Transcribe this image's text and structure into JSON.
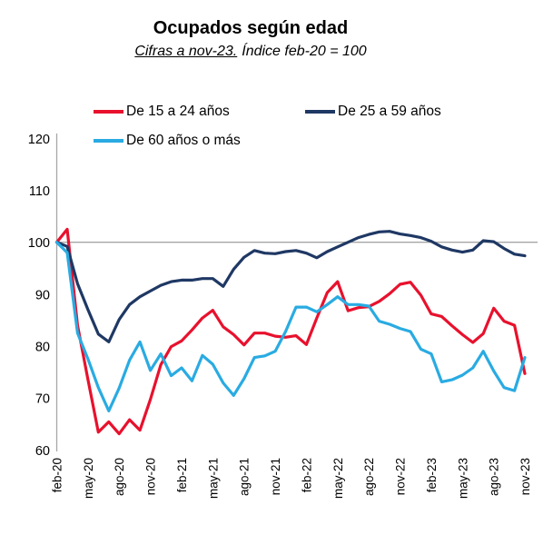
{
  "header": {
    "title": "Ocupados según edad",
    "subtitle_underlined": "Cifras a nov-23.",
    "subtitle_rest": "Índice feb-20 = 100"
  },
  "colors": {
    "axis": "#a6a6a6",
    "grid": "#a6a6a6",
    "text": "#000000"
  },
  "chart_data": {
    "type": "line",
    "title": "Ocupados según edad",
    "subtitle": "Cifras a nov-23. Índice feb-20 = 100",
    "ylabel": "",
    "xlabel": "",
    "ylim": [
      60,
      120
    ],
    "yticks": [
      120,
      110,
      100,
      90,
      80,
      70,
      60
    ],
    "ref_line": 100,
    "grid": "horizontal-reference-line-at-100-only",
    "legend_position": "top",
    "x": [
      "feb-20",
      "mar-20",
      "abr-20",
      "may-20",
      "jun-20",
      "jul-20",
      "ago-20",
      "sep-20",
      "oct-20",
      "nov-20",
      "dic-20",
      "ene-21",
      "feb-21",
      "mar-21",
      "abr-21",
      "may-21",
      "jun-21",
      "jul-21",
      "ago-21",
      "sep-21",
      "oct-21",
      "nov-21",
      "dic-21",
      "ene-22",
      "feb-22",
      "mar-22",
      "abr-22",
      "may-22",
      "jun-22",
      "jul-22",
      "ago-22",
      "sep-22",
      "oct-22",
      "nov-22",
      "dic-22",
      "ene-23",
      "feb-23",
      "mar-23",
      "abr-23",
      "may-23",
      "jun-23",
      "jul-23",
      "ago-23",
      "sep-23",
      "oct-23",
      "nov-23"
    ],
    "x_tick_labels": [
      "feb-20",
      "may-20",
      "ago-20",
      "nov-20",
      "feb-21",
      "may-21",
      "ago-21",
      "nov-21",
      "feb-22",
      "may-22",
      "ago-22",
      "nov-22",
      "feb-23",
      "may-23",
      "ago-23",
      "nov-23"
    ],
    "x_tick_every": 3,
    "series": [
      {
        "id": "15-24",
        "name": "De 15 a 24 años",
        "color": "#e8112d",
        "values": [
          100,
          102.5,
          84.0,
          73.5,
          63.4,
          65.4,
          63.1,
          65.8,
          63.8,
          69.7,
          76.4,
          79.9,
          81.0,
          83.1,
          85.4,
          86.9,
          83.7,
          82.2,
          80.2,
          82.5,
          82.5,
          81.9,
          81.7,
          82.0,
          80.3,
          85.4,
          90.3,
          92.4,
          86.8,
          87.4,
          87.6,
          88.6,
          90.1,
          91.9,
          92.3,
          89.8,
          86.2,
          85.7,
          83.9,
          82.2,
          80.7,
          82.4,
          87.3,
          84.8,
          84.0,
          74.7
        ]
      },
      {
        "id": "25-59",
        "name": "De 25 a 59 años",
        "color": "#1f3864",
        "values": [
          100,
          99.2,
          92.0,
          87.0,
          82.3,
          80.8,
          85.1,
          88.0,
          89.5,
          90.6,
          91.7,
          92.4,
          92.7,
          92.7,
          93.0,
          93.0,
          91.5,
          94.8,
          97.1,
          98.4,
          97.9,
          97.8,
          98.2,
          98.4,
          97.9,
          97.0,
          98.2,
          99.1,
          100.0,
          100.9,
          101.5,
          102.0,
          102.1,
          101.6,
          101.3,
          100.9,
          100.2,
          99.1,
          98.5,
          98.1,
          98.5,
          100.3,
          100.1,
          98.8,
          97.7,
          97.4
        ]
      },
      {
        "id": "60-mas",
        "name": "De 60 años o más",
        "color": "#29abe2",
        "values": [
          100,
          98.0,
          82.5,
          77.5,
          72.0,
          67.5,
          71.9,
          77.3,
          80.8,
          75.3,
          78.5,
          74.3,
          75.8,
          73.3,
          78.2,
          76.5,
          72.9,
          70.5,
          73.7,
          77.8,
          78.1,
          79.0,
          82.8,
          87.5,
          87.5,
          86.6,
          88.0,
          89.5,
          88.0,
          88.0,
          87.7,
          84.8,
          84.2,
          83.4,
          82.8,
          79.4,
          78.5,
          73.1,
          73.5,
          74.4,
          75.8,
          79.0,
          75.2,
          72.0,
          71.4,
          77.8
        ]
      }
    ]
  }
}
